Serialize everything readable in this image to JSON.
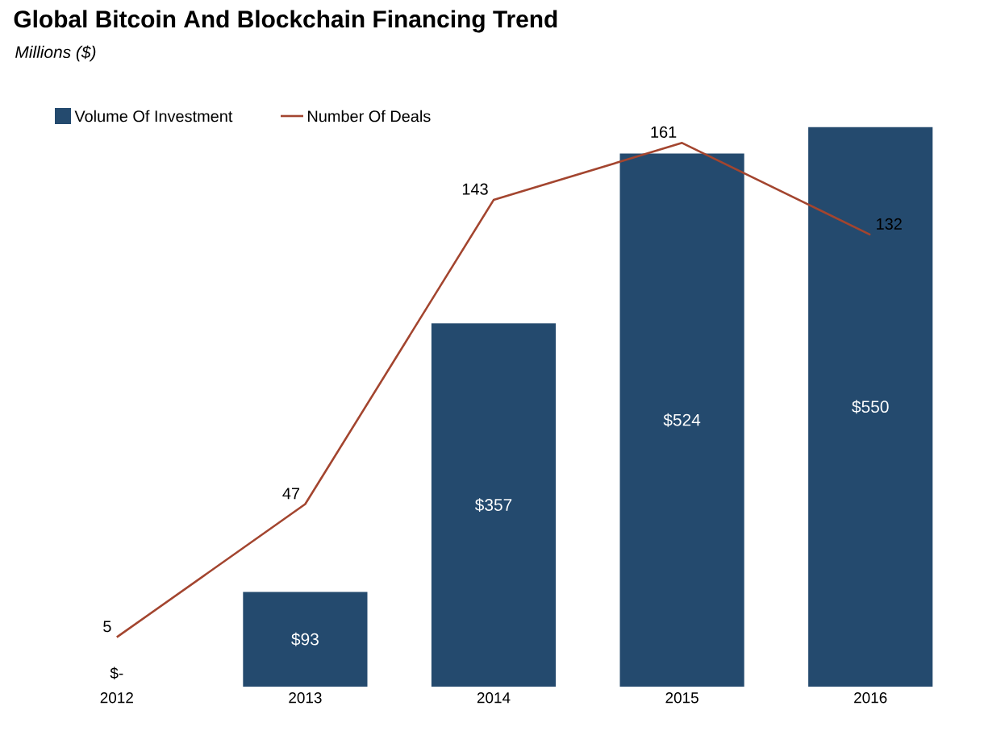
{
  "chart_data": {
    "type": "bar",
    "title": "Global Bitcoin And Blockchain Financing Trend",
    "subtitle": "Millions ($)",
    "categories": [
      "2012",
      "2013",
      "2014",
      "2015",
      "2016"
    ],
    "series": [
      {
        "name": "Volume Of Investment",
        "color": "#244a6e",
        "values": [
          0,
          93,
          357,
          524,
          550
        ],
        "value_labels": [
          "$-",
          "$93",
          "$357",
          "$524",
          "$550"
        ]
      },
      {
        "name": "Number Of Deals",
        "type": "line",
        "axis": "y2",
        "color": "#a3452f",
        "values": [
          5,
          47,
          143,
          161,
          132
        ],
        "value_labels": [
          "5",
          "47",
          "143",
          "161",
          "132"
        ]
      }
    ],
    "tick_labels": "x",
    "legend": "top left"
  }
}
